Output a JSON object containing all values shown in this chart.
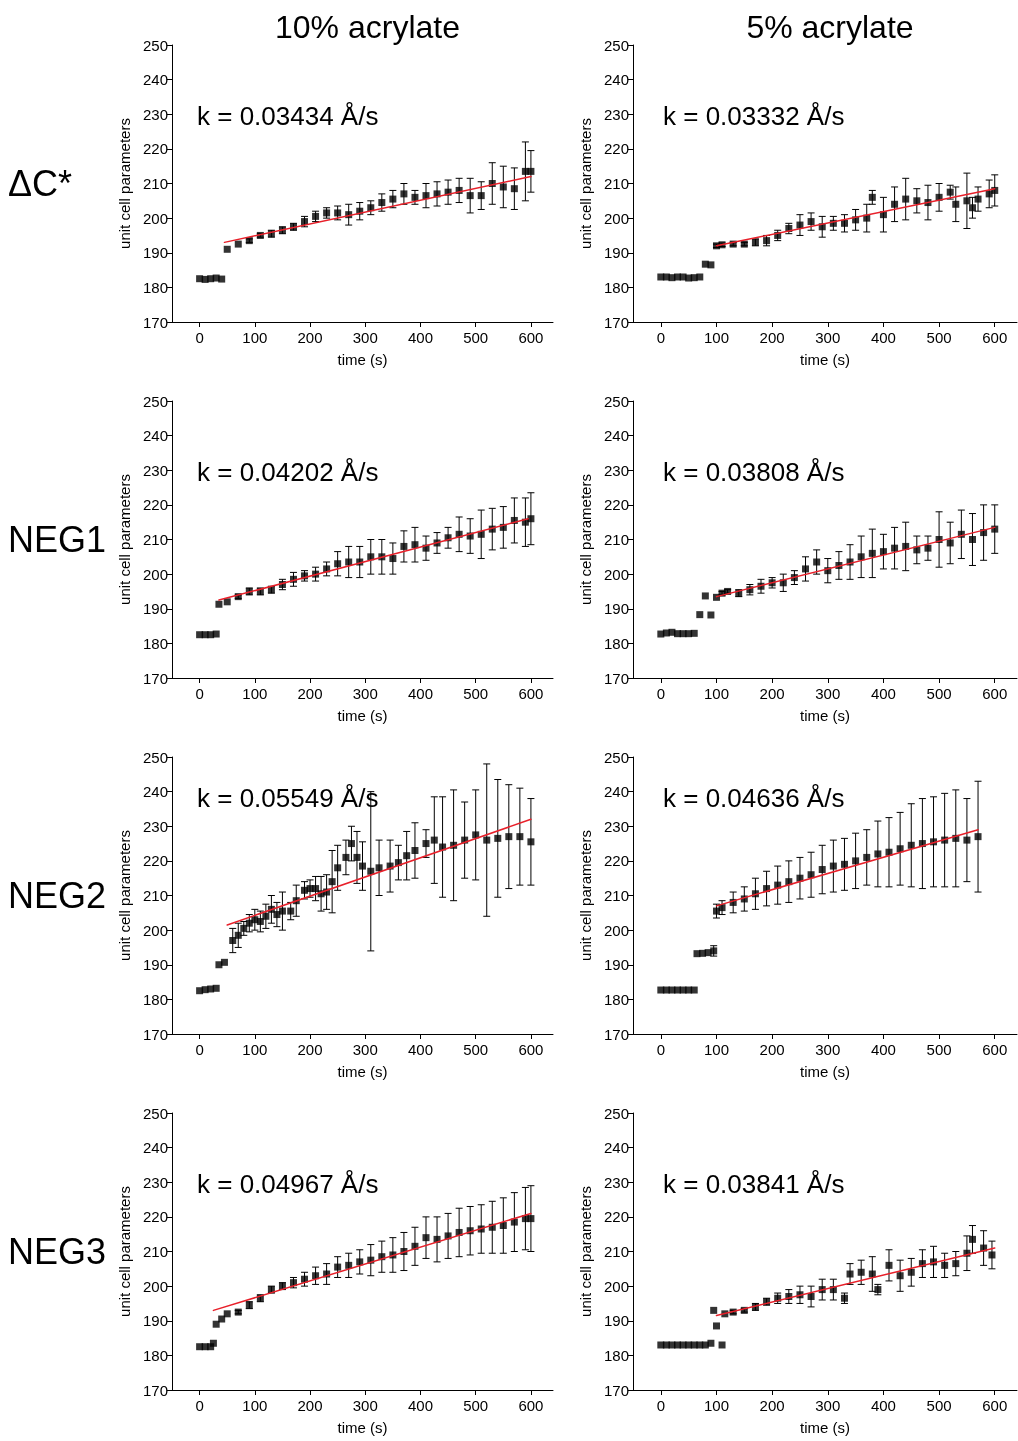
{
  "chart_data": [
    {
      "type": "scatter",
      "title": "10% acrylate",
      "subtitle": "ΔC*",
      "xlabel": "time (s)",
      "ylabel": "unit cell parameters",
      "annotations": [
        "k = 0.03434 Å/s"
      ],
      "xlim": [
        -50,
        640
      ],
      "ylim": [
        170,
        250
      ],
      "xticks": [
        0,
        100,
        200,
        300,
        400,
        500,
        600
      ],
      "yticks": [
        170,
        180,
        190,
        200,
        210,
        220,
        230,
        240,
        250
      ],
      "marker": "square",
      "line_style": "solid",
      "series": [
        {
          "color": "#000000",
          "x": [
            0,
            10,
            20,
            30,
            40,
            50,
            70,
            90,
            110,
            130,
            150,
            170,
            190,
            210,
            230,
            250,
            270,
            290,
            310,
            330,
            350,
            370,
            390,
            410,
            430,
            450,
            470,
            490,
            510,
            530,
            550,
            570,
            590,
            600
          ],
          "values": [
            182.5,
            182.3,
            182.5,
            182.7,
            182.4,
            191,
            192.5,
            193.5,
            195,
            195.5,
            196.5,
            197.5,
            199,
            200.5,
            201.5,
            201.5,
            201,
            202,
            203,
            204.5,
            205.5,
            207,
            206,
            206.5,
            207,
            207.5,
            208,
            206.5,
            206.5,
            210,
            209,
            208.5,
            213.5,
            213.5
          ],
          "errors": [
            null,
            null,
            null,
            null,
            null,
            null,
            null,
            0.5,
            0.5,
            1,
            1,
            1,
            1.5,
            1.5,
            1.5,
            2,
            3,
            2.5,
            2,
            2.5,
            2.5,
            3,
            2,
            3.5,
            3.5,
            3.5,
            3.5,
            5,
            4,
            6,
            6,
            6,
            8.5,
            6
          ]
        },
        {
          "type": "line",
          "color": "#e8202a",
          "x": [
            45,
            600
          ],
          "values": [
            193,
            212
          ],
          "marker": "none"
        }
      ]
    },
    {
      "type": "scatter",
      "title": "5% acrylate",
      "xlabel": "time (s)",
      "ylabel": "unit cell parameters",
      "annotations": [
        "k = 0.03332 Å/s"
      ],
      "xlim": [
        -50,
        640
      ],
      "ylim": [
        170,
        250
      ],
      "xticks": [
        0,
        100,
        200,
        300,
        400,
        500,
        600
      ],
      "yticks": [
        170,
        180,
        190,
        200,
        210,
        220,
        230,
        240,
        250
      ],
      "marker": "square",
      "line_style": "solid",
      "series": [
        {
          "color": "#000000",
          "x": [
            0,
            10,
            20,
            30,
            40,
            50,
            60,
            70,
            80,
            90,
            100,
            110,
            130,
            150,
            170,
            190,
            210,
            230,
            250,
            270,
            290,
            310,
            330,
            350,
            370,
            380,
            400,
            420,
            440,
            460,
            480,
            500,
            520,
            530,
            550,
            560,
            570,
            590,
            600
          ],
          "values": [
            183,
            183,
            182.8,
            183,
            183,
            182.7,
            182.8,
            183,
            186.7,
            186.5,
            192,
            192.3,
            192.5,
            192.5,
            193,
            193.5,
            195,
            197,
            198,
            199,
            197.5,
            198.5,
            198.5,
            199.5,
            200,
            206,
            201,
            204,
            205.5,
            205,
            204.5,
            206,
            207.5,
            204,
            205,
            203,
            205.5,
            207,
            208
          ],
          "errors": [
            null,
            null,
            null,
            null,
            null,
            null,
            null,
            null,
            null,
            null,
            0.5,
            0.5,
            0.5,
            0.5,
            1,
            1.5,
            1.5,
            1.5,
            3,
            2.5,
            3,
            2,
            2.5,
            3,
            4,
            2,
            5,
            5,
            6,
            3.5,
            5,
            4,
            2,
            5,
            8,
            3,
            3.5,
            4,
            4.5
          ]
        },
        {
          "type": "line",
          "color": "#e8202a",
          "x": [
            100,
            600
          ],
          "values": [
            192,
            208.5
          ],
          "marker": "none"
        }
      ]
    },
    {
      "type": "scatter",
      "subtitle": "NEG1",
      "xlabel": "time (s)",
      "ylabel": "unit cell parameters",
      "annotations": [
        "k = 0.04202 Å/s"
      ],
      "xlim": [
        -50,
        640
      ],
      "ylim": [
        170,
        250
      ],
      "xticks": [
        0,
        100,
        200,
        300,
        400,
        500,
        600
      ],
      "yticks": [
        170,
        180,
        190,
        200,
        210,
        220,
        230,
        240,
        250
      ],
      "marker": "square",
      "line_style": "solid",
      "series": [
        {
          "color": "#000000",
          "x": [
            0,
            10,
            20,
            30,
            35,
            50,
            70,
            90,
            110,
            130,
            150,
            170,
            190,
            210,
            230,
            250,
            270,
            290,
            310,
            330,
            350,
            370,
            390,
            410,
            430,
            450,
            470,
            490,
            510,
            530,
            550,
            570,
            590,
            600
          ],
          "values": [
            182.5,
            182.5,
            182.5,
            182.7,
            191.3,
            192,
            193.5,
            195,
            195,
            195.5,
            197,
            198.5,
            199.5,
            200,
            201.5,
            203,
            203.5,
            203.5,
            205,
            205,
            204.5,
            208,
            208.5,
            207.5,
            209,
            210.5,
            211.5,
            211,
            211.5,
            213,
            213.5,
            215.5,
            215,
            216
          ],
          "errors": [
            null,
            null,
            null,
            null,
            null,
            null,
            0.5,
            1,
            1,
            1,
            1.5,
            2,
            1.5,
            2,
            2,
            3.5,
            4.5,
            4.5,
            5,
            5,
            4.5,
            4.5,
            5,
            3.5,
            3,
            3,
            5,
            5,
            7,
            6,
            6,
            6.5,
            7,
            7.5
          ]
        },
        {
          "type": "line",
          "color": "#e8202a",
          "x": [
            35,
            595
          ],
          "values": [
            192.5,
            216
          ],
          "marker": "none"
        }
      ]
    },
    {
      "type": "scatter",
      "xlabel": "time (s)",
      "ylabel": "unit cell parameters",
      "annotations": [
        "k = 0.03808 Å/s"
      ],
      "xlim": [
        -50,
        640
      ],
      "ylim": [
        170,
        250
      ],
      "xticks": [
        0,
        100,
        200,
        300,
        400,
        500,
        600
      ],
      "yticks": [
        170,
        180,
        190,
        200,
        210,
        220,
        230,
        240,
        250
      ],
      "marker": "square",
      "line_style": "solid",
      "series": [
        {
          "color": "#000000",
          "x": [
            0,
            10,
            20,
            30,
            40,
            50,
            60,
            70,
            80,
            90,
            100,
            110,
            120,
            140,
            160,
            180,
            200,
            220,
            240,
            260,
            280,
            300,
            320,
            340,
            360,
            380,
            400,
            420,
            440,
            460,
            480,
            500,
            520,
            540,
            560,
            580,
            600
          ],
          "values": [
            182.7,
            183,
            183.2,
            182.8,
            182.8,
            182.8,
            182.9,
            188.3,
            193.7,
            188.2,
            193.3,
            194.5,
            195,
            194.5,
            195.5,
            196.5,
            197.5,
            197.5,
            199,
            201.5,
            203.5,
            201,
            202.5,
            203.5,
            205,
            206,
            206.5,
            207.5,
            208,
            207,
            207.5,
            210,
            209,
            211.5,
            210,
            212,
            213
          ],
          "errors": [
            null,
            null,
            null,
            null,
            null,
            null,
            null,
            null,
            null,
            null,
            null,
            0.5,
            0.5,
            1,
            1.5,
            2,
            1.5,
            2.5,
            2,
            3.5,
            3.5,
            3.5,
            4,
            5,
            6,
            7,
            5,
            6,
            7,
            4,
            3.5,
            8,
            6,
            7,
            7.5,
            8,
            7
          ]
        },
        {
          "type": "line",
          "color": "#e8202a",
          "x": [
            100,
            600
          ],
          "values": [
            193.5,
            213.5
          ],
          "marker": "none"
        }
      ]
    },
    {
      "type": "scatter",
      "subtitle": "NEG2",
      "xlabel": "time (s)",
      "ylabel": "unit cell parameters",
      "annotations": [
        "k = 0.05549 Å/s"
      ],
      "xlim": [
        -50,
        640
      ],
      "ylim": [
        170,
        250
      ],
      "xticks": [
        0,
        100,
        200,
        300,
        400,
        500,
        600
      ],
      "yticks": [
        170,
        180,
        190,
        200,
        210,
        220,
        230,
        240,
        250
      ],
      "marker": "square",
      "line_style": "solid",
      "series": [
        {
          "color": "#000000",
          "x": [
            0,
            10,
            20,
            30,
            35,
            45,
            60,
            70,
            80,
            90,
            100,
            110,
            120,
            130,
            140,
            150,
            165,
            175,
            190,
            200,
            210,
            220,
            230,
            240,
            250,
            265,
            275,
            285,
            295,
            310,
            325,
            345,
            360,
            375,
            390,
            410,
            425,
            440,
            460,
            480,
            500,
            520,
            540,
            560,
            580,
            600
          ],
          "values": [
            182.5,
            182.8,
            183,
            183.2,
            190,
            190.7,
            197,
            198.5,
            200.5,
            202,
            203,
            202.5,
            204,
            206,
            204.5,
            205.5,
            205.5,
            208.5,
            211.5,
            212,
            212,
            210.5,
            211,
            214,
            218,
            221,
            225,
            221,
            218.5,
            217,
            218,
            218.5,
            219.5,
            221.5,
            223,
            225,
            226,
            224,
            224.5,
            226,
            227.5,
            226,
            226.5,
            227,
            227,
            225.5
          ],
          "errors": [
            null,
            null,
            null,
            null,
            null,
            null,
            3.5,
            3.5,
            2,
            2.5,
            3,
            3,
            3.5,
            4,
            3.5,
            5.5,
            2.5,
            4.5,
            2.5,
            2.5,
            3.5,
            5,
            5,
            9,
            6.5,
            5,
            5,
            7.5,
            7,
            23,
            8,
            7.5,
            5,
            7,
            8,
            4,
            12.5,
            14.5,
            16,
            11,
            13,
            22,
            17,
            15,
            14,
            12.5
          ]
        },
        {
          "type": "line",
          "color": "#e8202a",
          "x": [
            50,
            600
          ],
          "values": [
            201.5,
            232
          ],
          "marker": "none"
        }
      ]
    },
    {
      "type": "scatter",
      "xlabel": "time (s)",
      "ylabel": "unit cell parameters",
      "annotations": [
        "k = 0.04636 Å/s"
      ],
      "xlim": [
        -50,
        640
      ],
      "ylim": [
        170,
        250
      ],
      "xticks": [
        0,
        100,
        200,
        300,
        400,
        500,
        600
      ],
      "yticks": [
        170,
        180,
        190,
        200,
        210,
        220,
        230,
        240,
        250
      ],
      "marker": "square",
      "line_style": "solid",
      "series": [
        {
          "color": "#000000",
          "x": [
            0,
            10,
            20,
            30,
            40,
            50,
            60,
            65,
            75,
            85,
            95,
            100,
            110,
            130,
            150,
            170,
            190,
            210,
            230,
            250,
            270,
            290,
            310,
            330,
            350,
            370,
            390,
            410,
            430,
            450,
            470,
            490,
            510,
            530,
            550,
            570
          ],
          "values": [
            182.7,
            182.7,
            182.7,
            182.7,
            182.7,
            182.7,
            182.7,
            193.2,
            193.3,
            193.5,
            194,
            205.5,
            206.5,
            208,
            209,
            210.5,
            212,
            213,
            214,
            215,
            216,
            217.5,
            218.5,
            219,
            220,
            221,
            222,
            222.5,
            223.5,
            224.5,
            225,
            225.5,
            226,
            226.5,
            226,
            227
          ],
          "errors": [
            null,
            null,
            null,
            null,
            null,
            null,
            null,
            null,
            null,
            null,
            1.5,
            2,
            2,
            3,
            3.5,
            4.5,
            5,
            5.5,
            6,
            6,
            6.5,
            7,
            7.5,
            7.5,
            8,
            8,
            9.5,
            10,
            10.5,
            12,
            13,
            13,
            13.5,
            14,
            12,
            16
          ]
        },
        {
          "type": "line",
          "color": "#e8202a",
          "x": [
            100,
            570
          ],
          "values": [
            207,
            229
          ],
          "marker": "none"
        }
      ]
    },
    {
      "type": "scatter",
      "subtitle": "NEG3",
      "xlabel": "time (s)",
      "ylabel": "unit cell parameters",
      "annotations": [
        "k = 0.04967 Å/s"
      ],
      "xlim": [
        -50,
        640
      ],
      "ylim": [
        170,
        250
      ],
      "xticks": [
        0,
        100,
        200,
        300,
        400,
        500,
        600
      ],
      "yticks": [
        170,
        180,
        190,
        200,
        210,
        220,
        230,
        240,
        250
      ],
      "marker": "square",
      "line_style": "solid",
      "series": [
        {
          "color": "#000000",
          "x": [
            0,
            10,
            20,
            25,
            30,
            40,
            50,
            70,
            90,
            110,
            130,
            150,
            170,
            190,
            210,
            230,
            250,
            270,
            290,
            310,
            330,
            350,
            370,
            390,
            410,
            430,
            450,
            470,
            490,
            510,
            530,
            550,
            570,
            590,
            600
          ],
          "values": [
            182.5,
            182.5,
            182.5,
            183.5,
            189,
            190.5,
            192,
            192.5,
            194.5,
            196.5,
            199,
            200,
            201,
            202,
            203,
            203.5,
            205.5,
            206,
            207,
            207.5,
            208.5,
            209,
            210,
            211.5,
            214,
            213.5,
            214.5,
            215.5,
            216,
            216.5,
            217,
            217.5,
            218.5,
            219.5,
            219.5
          ],
          "errors": [
            null,
            null,
            null,
            null,
            null,
            null,
            null,
            0.5,
            1,
            1,
            1,
            1,
            1.5,
            2,
            2.5,
            3,
            3,
            3.5,
            3.5,
            4.5,
            4.5,
            5,
            5.5,
            5.5,
            6,
            6.5,
            6.5,
            7,
            7,
            7,
            7.5,
            8,
            8.5,
            9,
            9.5
          ]
        },
        {
          "type": "line",
          "color": "#e8202a",
          "x": [
            25,
            600
          ],
          "values": [
            193,
            221
          ],
          "marker": "none"
        }
      ]
    },
    {
      "type": "scatter",
      "xlabel": "time (s)",
      "ylabel": "unit cell parameters",
      "annotations": [
        "k = 0.03841 Å/s"
      ],
      "xlim": [
        -50,
        640
      ],
      "ylim": [
        170,
        250
      ],
      "xticks": [
        0,
        100,
        200,
        300,
        400,
        500,
        600
      ],
      "yticks": [
        170,
        180,
        190,
        200,
        210,
        220,
        230,
        240,
        250
      ],
      "marker": "square",
      "line_style": "solid",
      "series": [
        {
          "color": "#000000",
          "x": [
            0,
            10,
            20,
            30,
            40,
            50,
            60,
            70,
            80,
            90,
            95,
            100,
            110,
            115,
            130,
            150,
            170,
            190,
            210,
            230,
            250,
            270,
            290,
            310,
            330,
            340,
            360,
            380,
            390,
            410,
            430,
            450,
            470,
            490,
            510,
            530,
            550,
            560,
            580,
            595
          ],
          "values": [
            183,
            183,
            183,
            183,
            183,
            183,
            183,
            183,
            183,
            183.5,
            193,
            188.5,
            183,
            192,
            192.5,
            193,
            194,
            195.5,
            196.5,
            197,
            197.5,
            197,
            199,
            199,
            196.5,
            203.5,
            204,
            203.5,
            199,
            206,
            203,
            204,
            206.5,
            207,
            206,
            206.5,
            209.5,
            213.5,
            211,
            209
          ],
          "errors": [
            null,
            null,
            null,
            null,
            null,
            null,
            null,
            null,
            null,
            null,
            null,
            null,
            null,
            null,
            0.5,
            0.5,
            1,
            1,
            1.5,
            2,
            2.5,
            3,
            3,
            3,
            1.5,
            3,
            3.5,
            5,
            1.5,
            4.5,
            4.5,
            4,
            4,
            4.5,
            3.5,
            3.5,
            5,
            4,
            5,
            4
          ]
        },
        {
          "type": "line",
          "color": "#e8202a",
          "x": [
            100,
            600
          ],
          "values": [
            191.5,
            211
          ],
          "marker": "none"
        }
      ]
    }
  ]
}
